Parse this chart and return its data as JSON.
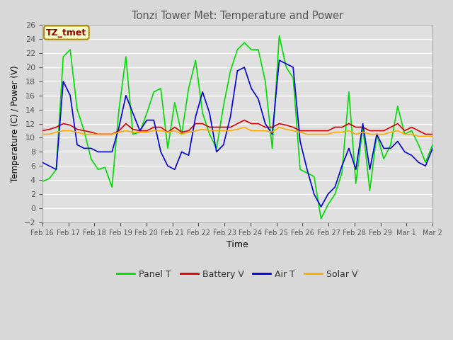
{
  "title": "Tonzi Tower Met: Temperature and Power",
  "xlabel": "Time",
  "ylabel": "Temperature (C) / Power (V)",
  "ylim": [
    -2,
    26
  ],
  "yticks": [
    -2,
    0,
    2,
    4,
    6,
    8,
    10,
    12,
    14,
    16,
    18,
    20,
    22,
    24,
    26
  ],
  "background_color": "#d8d8d8",
  "plot_bg_color": "#e0e0e0",
  "grid_color": "#ffffff",
  "annotation_text": "TZ_tmet",
  "annotation_bg": "#ffffcc",
  "annotation_border": "#aa8800",
  "annotation_text_color": "#990000",
  "x_labels": [
    "Feb 16",
    "Feb 17",
    "Feb 18",
    "Feb 19",
    "Feb 20",
    "Feb 21",
    "Feb 22",
    "Feb 23",
    "Feb 24",
    "Feb 25",
    "Feb 26",
    "Feb 27",
    "Feb 28",
    "Feb 29",
    "Mar 1",
    "Mar 2"
  ],
  "legend": [
    {
      "label": "Panel T",
      "color": "#00dd00"
    },
    {
      "label": "Battery V",
      "color": "#dd0000"
    },
    {
      "label": "Air T",
      "color": "#0000dd"
    },
    {
      "label": "Solar V",
      "color": "#ffaa00"
    }
  ],
  "panel_t": [
    3.8,
    4.2,
    5.5,
    21.5,
    22.5,
    14.0,
    11.0,
    7.0,
    5.5,
    5.8,
    3.0,
    14.0,
    21.5,
    10.5,
    10.8,
    13.5,
    16.5,
    17.0,
    8.5,
    15.0,
    10.5,
    17.0,
    21.0,
    13.5,
    10.5,
    8.5,
    14.5,
    19.5,
    22.5,
    23.5,
    22.5,
    22.5,
    18.0,
    8.5,
    24.5,
    20.0,
    18.5,
    5.5,
    5.0,
    4.5,
    -1.5,
    0.5,
    2.0,
    5.0,
    16.5,
    3.5,
    11.5,
    2.5,
    10.5,
    7.0,
    9.0,
    14.5,
    10.5,
    11.0,
    9.0,
    6.5,
    9.0
  ],
  "battery_v": [
    11.0,
    11.2,
    11.5,
    12.0,
    11.8,
    11.2,
    11.0,
    10.8,
    10.5,
    10.5,
    10.5,
    11.0,
    12.0,
    11.2,
    11.0,
    11.0,
    11.5,
    11.5,
    10.8,
    11.5,
    10.8,
    11.0,
    12.0,
    12.0,
    11.5,
    11.5,
    11.5,
    11.5,
    12.0,
    12.5,
    12.0,
    12.0,
    11.5,
    11.5,
    12.0,
    11.8,
    11.5,
    11.0,
    11.0,
    11.0,
    11.0,
    11.0,
    11.5,
    11.5,
    12.0,
    11.5,
    11.5,
    11.0,
    11.0,
    11.0,
    11.5,
    12.0,
    11.0,
    11.5,
    11.0,
    10.5,
    10.5
  ],
  "air_t": [
    6.5,
    6.0,
    5.5,
    18.0,
    16.0,
    9.0,
    8.5,
    8.5,
    8.0,
    8.0,
    8.0,
    11.5,
    16.0,
    13.5,
    11.0,
    12.5,
    12.5,
    8.0,
    6.0,
    5.5,
    8.0,
    7.5,
    13.0,
    16.5,
    13.5,
    8.0,
    9.0,
    13.0,
    19.5,
    20.0,
    17.0,
    15.5,
    12.0,
    10.5,
    21.0,
    20.5,
    20.0,
    9.5,
    5.5,
    2.0,
    0.2,
    2.0,
    3.0,
    6.0,
    8.5,
    5.5,
    12.0,
    5.5,
    10.5,
    8.5,
    8.5,
    9.5,
    8.0,
    7.5,
    6.5,
    6.0,
    8.5
  ],
  "solar_v": [
    10.5,
    10.5,
    10.8,
    11.0,
    11.0,
    10.8,
    10.5,
    10.5,
    10.5,
    10.5,
    10.5,
    10.8,
    11.0,
    10.8,
    10.8,
    10.8,
    11.0,
    11.0,
    10.8,
    11.0,
    10.5,
    10.8,
    11.0,
    11.2,
    11.0,
    11.0,
    11.0,
    11.0,
    11.2,
    11.5,
    11.0,
    11.0,
    11.0,
    10.8,
    11.5,
    11.2,
    11.0,
    10.8,
    10.5,
    10.5,
    10.5,
    10.5,
    10.8,
    10.8,
    11.0,
    10.5,
    10.8,
    10.5,
    10.5,
    10.5,
    10.8,
    11.0,
    10.5,
    10.5,
    10.2,
    10.2,
    10.2
  ]
}
